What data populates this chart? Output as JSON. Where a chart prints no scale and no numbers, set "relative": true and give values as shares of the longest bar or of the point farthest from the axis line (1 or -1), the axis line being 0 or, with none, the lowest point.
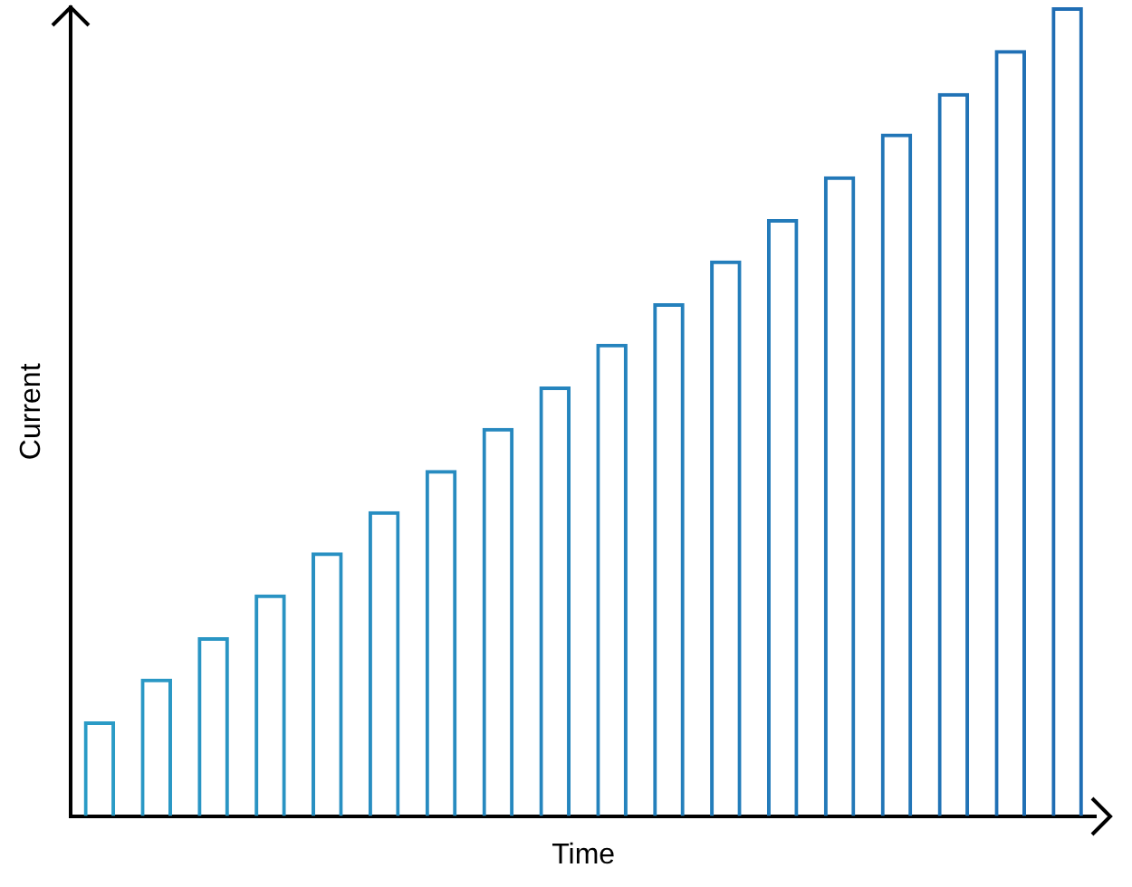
{
  "chart_data": {
    "type": "bar",
    "relative": true,
    "xlabel": "Time",
    "ylabel": "Current",
    "categories": [
      null,
      null,
      null,
      null,
      null,
      null,
      null,
      null,
      null,
      null,
      null,
      null,
      null,
      null,
      null,
      null,
      null,
      null
    ],
    "values": [
      0.117,
      0.17,
      0.221,
      0.274,
      0.326,
      0.377,
      0.428,
      0.48,
      0.531,
      0.584,
      0.634,
      0.687,
      0.738,
      0.791,
      0.844,
      0.894,
      0.947,
      1
    ],
    "colors": [
      "#2a9bc6",
      "#2a98c5",
      "#2995c4",
      "#2993c3",
      "#2890c2",
      "#278dc1",
      "#278bc0",
      "#2688bf",
      "#2585be",
      "#2583bd",
      "#2480bc",
      "#237dbb",
      "#237bba",
      "#2278b8",
      "#2175b7",
      "#2173b6",
      "#2070b5",
      "#1f6db4"
    ],
    "grid": false,
    "legend": false
  }
}
